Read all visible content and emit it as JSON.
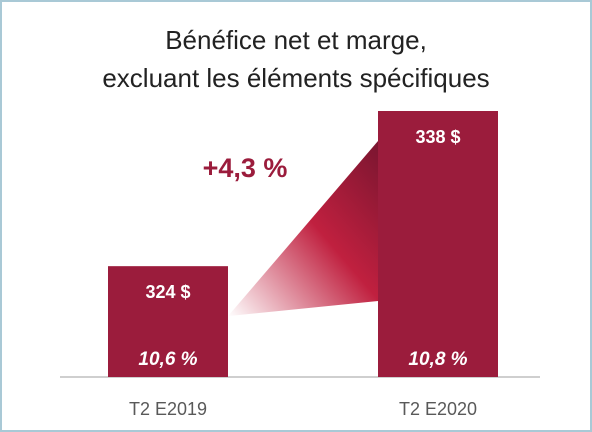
{
  "chart_data": {
    "type": "bar",
    "title": [
      "Bénéfice net et marge,",
      "excluant les éléments spécifiques"
    ],
    "categories": [
      "T2 E2019",
      "T2 E2020"
    ],
    "values": [
      324,
      338
    ],
    "value_labels": [
      "324 $",
      "338 $"
    ],
    "margin_labels": [
      "10,6 %",
      "10,8 %"
    ],
    "annotation": "+4,3 %",
    "color": "#9b1c3c",
    "ylim": [
      314,
      338
    ]
  }
}
